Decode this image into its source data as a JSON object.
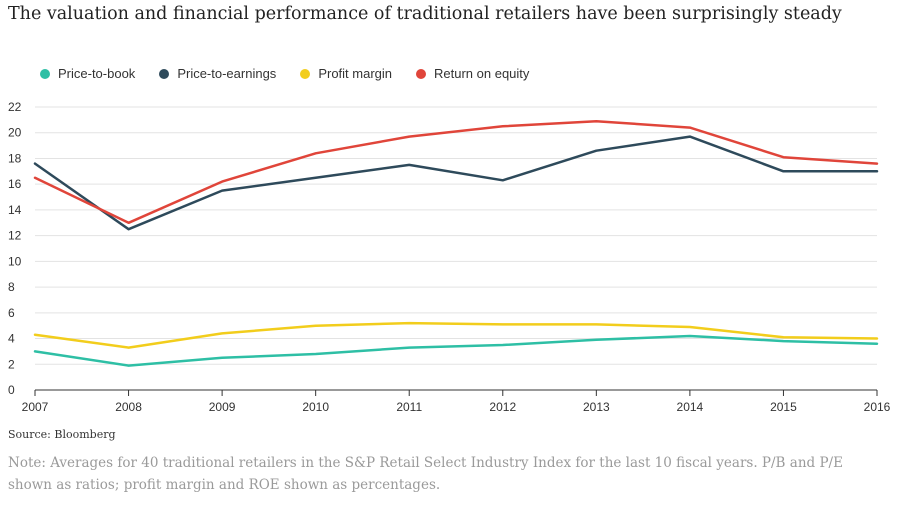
{
  "chart_data": {
    "type": "line",
    "title": "The valuation and financial performance of traditional retailers have been surprisingly steady",
    "xlabel": "",
    "ylabel": "",
    "categories": [
      "2007",
      "2008",
      "2009",
      "2010",
      "2011",
      "2012",
      "2013",
      "2014",
      "2015",
      "2016"
    ],
    "ylim": [
      0,
      22
    ],
    "yticks": [
      "0",
      "2",
      "4",
      "6",
      "8",
      "10",
      "12",
      "14",
      "16",
      "18",
      "20",
      "22"
    ],
    "grid": true,
    "legend_position": "top-left",
    "series": [
      {
        "name": "Price-to-book",
        "color": "#2ebfa5",
        "values": [
          3.0,
          1.9,
          2.5,
          2.8,
          3.3,
          3.5,
          3.9,
          4.2,
          3.8,
          3.6
        ]
      },
      {
        "name": "Price-to-earnings",
        "color": "#2e4a5b",
        "values": [
          17.6,
          12.5,
          15.5,
          16.5,
          17.5,
          16.3,
          18.6,
          19.7,
          17.0,
          17.0
        ]
      },
      {
        "name": "Profit margin",
        "color": "#f2cd1c",
        "values": [
          4.3,
          3.3,
          4.4,
          5.0,
          5.2,
          5.1,
          5.1,
          4.9,
          4.1,
          4.0
        ]
      },
      {
        "name": "Return on equity",
        "color": "#e0453a",
        "values": [
          16.5,
          13.0,
          16.2,
          18.4,
          19.7,
          20.5,
          20.9,
          20.4,
          18.1,
          17.6
        ]
      }
    ]
  },
  "source": "Source: Bloomberg",
  "note": "Note: Averages for 40 traditional retailers in the S&P Retail Select Industry Index for the last 10 fiscal years. P/B and P/E shown as ratios; profit margin and ROE shown as percentages."
}
